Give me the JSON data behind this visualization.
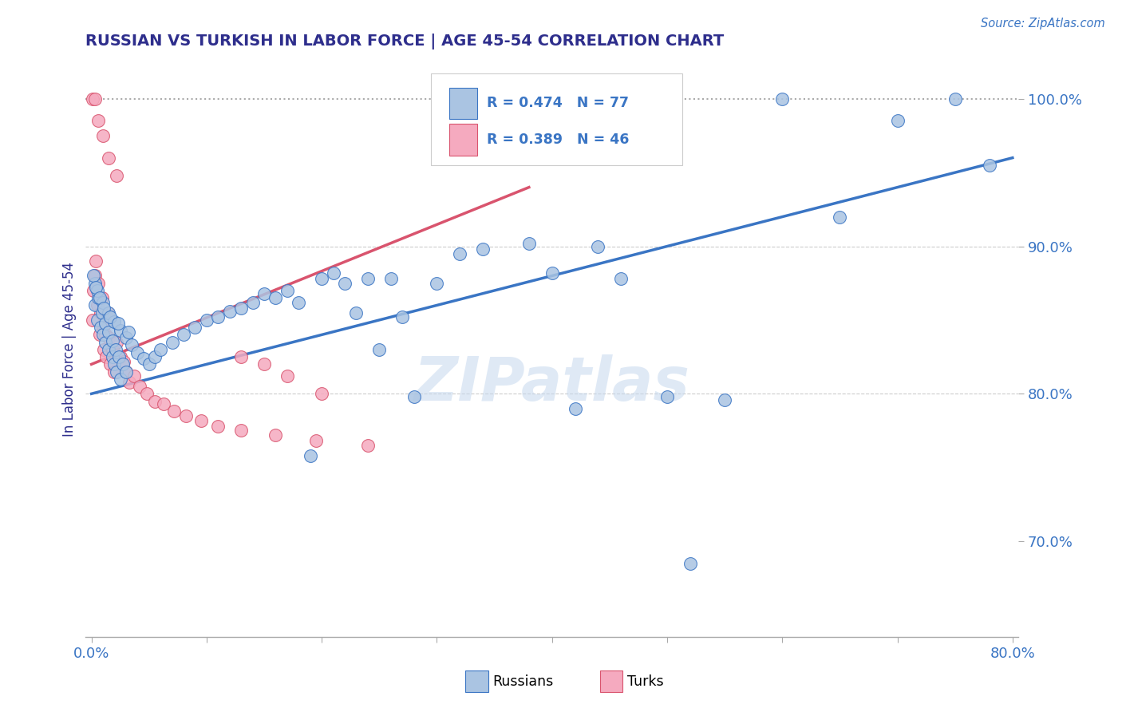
{
  "title": "RUSSIAN VS TURKISH IN LABOR FORCE | AGE 45-54 CORRELATION CHART",
  "source_text": "Source: ZipAtlas.com",
  "ylabel": "In Labor Force | Age 45-54",
  "xlim": [
    -0.005,
    0.805
  ],
  "ylim": [
    0.635,
    1.025
  ],
  "xtick_vals": [
    0.0,
    0.1,
    0.2,
    0.3,
    0.4,
    0.5,
    0.6,
    0.7,
    0.8
  ],
  "xticklabels": [
    "0.0%",
    "",
    "",
    "",
    "",
    "",
    "",
    "",
    "80.0%"
  ],
  "ytick_vals": [
    0.7,
    0.8,
    0.9,
    1.0
  ],
  "yticklabels": [
    "70.0%",
    "80.0%",
    "90.0%",
    "100.0%"
  ],
  "russian_R": 0.474,
  "russian_N": 77,
  "turkish_R": 0.389,
  "turkish_N": 46,
  "russian_color": "#aac4e2",
  "turkish_color": "#f5aabf",
  "russian_line_color": "#3a75c4",
  "turkish_line_color": "#d9546e",
  "title_color": "#2e2e8c",
  "axis_label_color": "#2e2e8c",
  "tick_color": "#3a75c4",
  "dotted_line_y": 1.0,
  "watermark": "ZIPatlas",
  "russians_x": [
    0.003,
    0.005,
    0.008,
    0.01,
    0.012,
    0.015,
    0.018,
    0.02,
    0.022,
    0.025,
    0.003,
    0.006,
    0.009,
    0.012,
    0.015,
    0.018,
    0.021,
    0.024,
    0.027,
    0.03,
    0.005,
    0.01,
    0.015,
    0.02,
    0.025,
    0.03,
    0.035,
    0.04,
    0.045,
    0.05,
    0.055,
    0.06,
    0.07,
    0.08,
    0.09,
    0.1,
    0.11,
    0.12,
    0.13,
    0.14,
    0.15,
    0.16,
    0.17,
    0.18,
    0.19,
    0.2,
    0.21,
    0.22,
    0.23,
    0.24,
    0.25,
    0.26,
    0.27,
    0.28,
    0.3,
    0.32,
    0.34,
    0.38,
    0.4,
    0.42,
    0.44,
    0.46,
    0.5,
    0.52,
    0.55,
    0.6,
    0.65,
    0.7,
    0.75,
    0.78,
    0.002,
    0.004,
    0.007,
    0.011,
    0.016,
    0.023,
    0.032
  ],
  "russians_y": [
    0.86,
    0.85,
    0.845,
    0.84,
    0.835,
    0.83,
    0.825,
    0.82,
    0.815,
    0.81,
    0.875,
    0.865,
    0.855,
    0.848,
    0.842,
    0.836,
    0.83,
    0.825,
    0.82,
    0.815,
    0.87,
    0.862,
    0.855,
    0.849,
    0.843,
    0.838,
    0.833,
    0.828,
    0.824,
    0.82,
    0.825,
    0.83,
    0.835,
    0.84,
    0.845,
    0.85,
    0.852,
    0.856,
    0.858,
    0.862,
    0.868,
    0.865,
    0.87,
    0.862,
    0.758,
    0.878,
    0.882,
    0.875,
    0.855,
    0.878,
    0.83,
    0.878,
    0.852,
    0.798,
    0.875,
    0.895,
    0.898,
    0.902,
    0.882,
    0.79,
    0.9,
    0.878,
    0.798,
    0.685,
    0.796,
    1.0,
    0.92,
    0.985,
    1.0,
    0.955,
    0.88,
    0.872,
    0.865,
    0.858,
    0.852,
    0.848,
    0.842
  ],
  "turks_x": [
    0.001,
    0.002,
    0.003,
    0.004,
    0.005,
    0.006,
    0.007,
    0.008,
    0.009,
    0.01,
    0.011,
    0.012,
    0.013,
    0.014,
    0.015,
    0.016,
    0.018,
    0.02,
    0.022,
    0.025,
    0.028,
    0.03,
    0.033,
    0.037,
    0.042,
    0.048,
    0.055,
    0.063,
    0.072,
    0.082,
    0.095,
    0.11,
    0.13,
    0.16,
    0.195,
    0.24,
    0.2,
    0.17,
    0.15,
    0.13,
    0.001,
    0.003,
    0.006,
    0.01,
    0.015,
    0.022
  ],
  "turks_y": [
    0.85,
    0.87,
    0.88,
    0.89,
    0.86,
    0.875,
    0.84,
    0.855,
    0.865,
    0.845,
    0.83,
    0.84,
    0.825,
    0.855,
    0.838,
    0.82,
    0.83,
    0.815,
    0.835,
    0.825,
    0.822,
    0.815,
    0.808,
    0.812,
    0.805,
    0.8,
    0.795,
    0.793,
    0.788,
    0.785,
    0.782,
    0.778,
    0.775,
    0.772,
    0.768,
    0.765,
    0.8,
    0.812,
    0.82,
    0.825,
    1.0,
    1.0,
    0.985,
    0.975,
    0.96,
    0.948
  ],
  "russian_trend": [
    0.0,
    0.8,
    0.8,
    0.96
  ],
  "turkish_trend": [
    0.0,
    0.38,
    0.82,
    0.94
  ]
}
